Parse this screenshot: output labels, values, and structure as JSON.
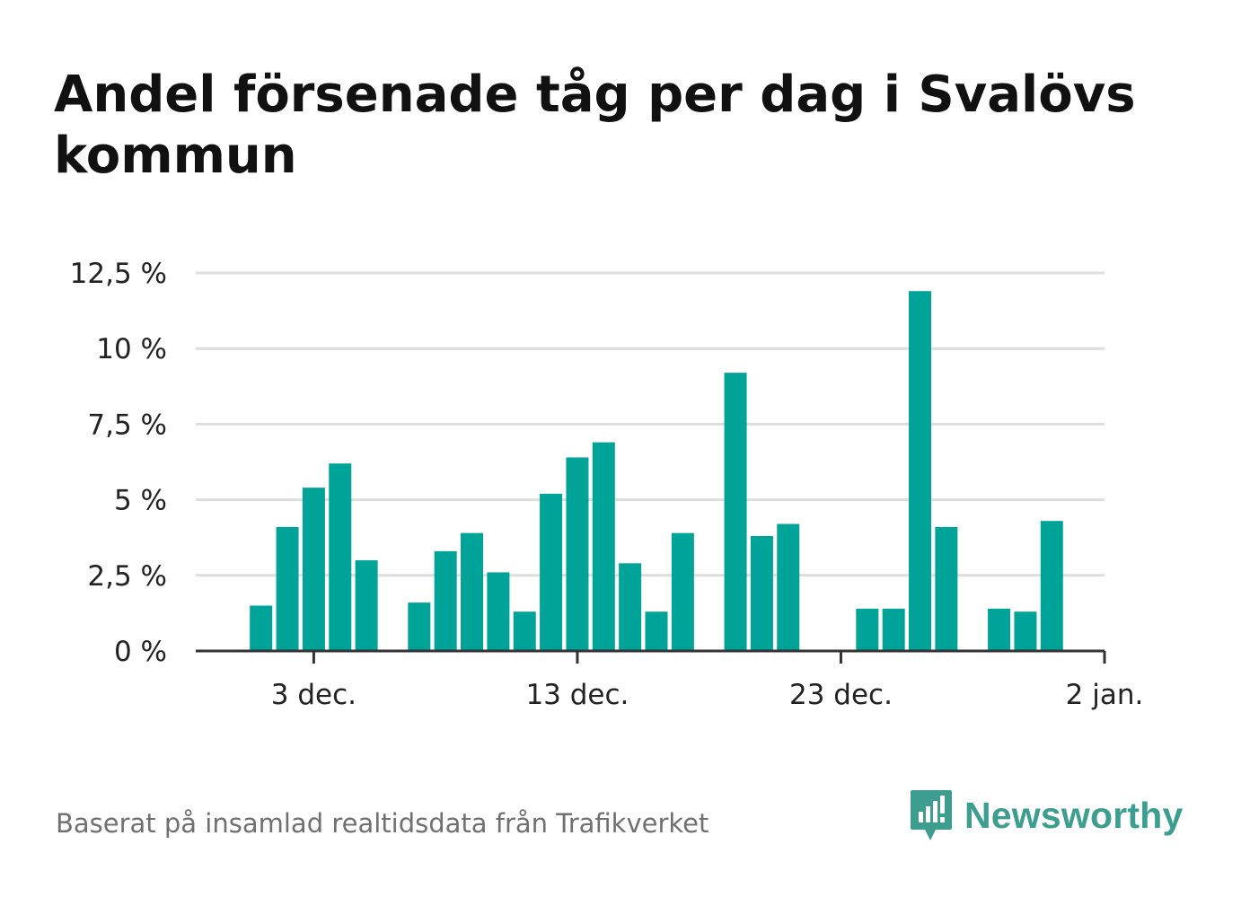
{
  "title": "Andel försenade tåg per dag i Svalövs kommun",
  "source": "Baserat på insamlad realtidsdata från Trafikverket",
  "brand": {
    "name": "Newsworthy",
    "color": "#3d9e90",
    "icon": "newsworthy-logo-icon"
  },
  "colors": {
    "bar": "#00a398",
    "grid": "#dddddd",
    "axis": "#333333",
    "text": "#222222"
  },
  "chart_data": {
    "type": "bar",
    "ylim": [
      0,
      12.5
    ],
    "y_ticks": [
      {
        "value": 0,
        "label": "0 %"
      },
      {
        "value": 2.5,
        "label": "2,5 %"
      },
      {
        "value": 5,
        "label": "5 %"
      },
      {
        "value": 7.5,
        "label": "7,5 %"
      },
      {
        "value": 10,
        "label": "10 %"
      },
      {
        "value": 12.5,
        "label": "12,5 %"
      }
    ],
    "x_ticks": [
      {
        "date": "2023-12-03",
        "label": "3 dec."
      },
      {
        "date": "2023-12-13",
        "label": "13 dec."
      },
      {
        "date": "2023-12-23",
        "label": "23 dec."
      },
      {
        "date": "2024-01-02",
        "label": "2 jan."
      }
    ],
    "x_range": [
      "2023-11-29",
      "2024-01-02"
    ],
    "grid": true,
    "series": [
      {
        "values": [
          {
            "date": "2023-12-01",
            "value": 1.5
          },
          {
            "date": "2023-12-02",
            "value": 4.1
          },
          {
            "date": "2023-12-03",
            "value": 5.4
          },
          {
            "date": "2023-12-04",
            "value": 6.2
          },
          {
            "date": "2023-12-05",
            "value": 3.0
          },
          {
            "date": "2023-12-06",
            "value": null
          },
          {
            "date": "2023-12-07",
            "value": 1.6
          },
          {
            "date": "2023-12-08",
            "value": 3.3
          },
          {
            "date": "2023-12-09",
            "value": 3.9
          },
          {
            "date": "2023-12-10",
            "value": 2.6
          },
          {
            "date": "2023-12-11",
            "value": 1.3
          },
          {
            "date": "2023-12-12",
            "value": 5.2
          },
          {
            "date": "2023-12-13",
            "value": 6.4
          },
          {
            "date": "2023-12-14",
            "value": 6.9
          },
          {
            "date": "2023-12-15",
            "value": 2.9
          },
          {
            "date": "2023-12-16",
            "value": 1.3
          },
          {
            "date": "2023-12-17",
            "value": 3.9
          },
          {
            "date": "2023-12-18",
            "value": null
          },
          {
            "date": "2023-12-19",
            "value": 9.2
          },
          {
            "date": "2023-12-20",
            "value": 3.8
          },
          {
            "date": "2023-12-21",
            "value": 4.2
          },
          {
            "date": "2023-12-22",
            "value": null
          },
          {
            "date": "2023-12-23",
            "value": null
          },
          {
            "date": "2023-12-24",
            "value": 1.4
          },
          {
            "date": "2023-12-25",
            "value": 1.4
          },
          {
            "date": "2023-12-26",
            "value": 11.9
          },
          {
            "date": "2023-12-27",
            "value": 4.1
          },
          {
            "date": "2023-12-28",
            "value": null
          },
          {
            "date": "2023-12-29",
            "value": 1.4
          },
          {
            "date": "2023-12-30",
            "value": 1.3
          },
          {
            "date": "2023-12-31",
            "value": 4.3
          }
        ]
      }
    ]
  }
}
